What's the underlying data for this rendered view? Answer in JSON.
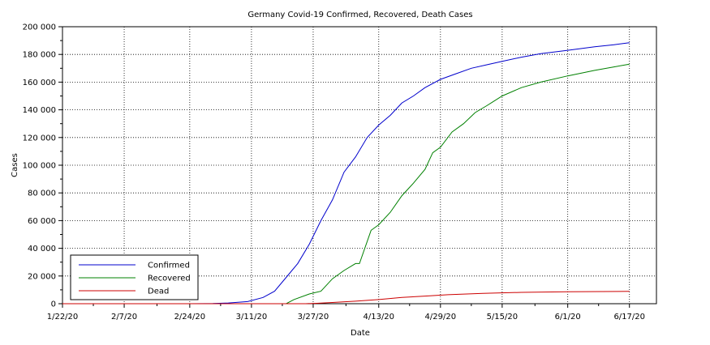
{
  "chart_data": {
    "type": "line",
    "title": "Germany Covid-19 Confirmed, Recovered, Death Cases",
    "xlabel": "Date",
    "ylabel": "Cases",
    "x_ticks": [
      "1/22/20",
      "2/7/20",
      "2/24/20",
      "3/11/20",
      "3/27/20",
      "4/13/20",
      "4/29/20",
      "5/15/20",
      "6/1/20",
      "6/17/20"
    ],
    "y_ticks": [
      "0",
      "20 000",
      "40 000",
      "60 000",
      "80 000",
      "100 000",
      "120 000",
      "140 000",
      "160 000",
      "180 000",
      "200 000"
    ],
    "xlim": [
      "1/22/20",
      "6/24/20"
    ],
    "ylim": [
      0,
      200000
    ],
    "grid": true,
    "legend": "bottom-left",
    "series": [
      {
        "name": "Confirmed",
        "color": "#0000cc",
        "points": [
          [
            "1/22/20",
            0
          ],
          [
            "2/24/20",
            20
          ],
          [
            "3/1/20",
            130
          ],
          [
            "3/5/20",
            500
          ],
          [
            "3/10/20",
            1500
          ],
          [
            "3/14/20",
            4500
          ],
          [
            "3/17/20",
            9000
          ],
          [
            "3/20/20",
            19000
          ],
          [
            "3/23/20",
            29000
          ],
          [
            "3/26/20",
            43000
          ],
          [
            "3/29/20",
            60000
          ],
          [
            "4/1/20",
            75000
          ],
          [
            "4/4/20",
            95000
          ],
          [
            "4/7/20",
            106000
          ],
          [
            "4/10/20",
            120000
          ],
          [
            "4/13/20",
            129000
          ],
          [
            "4/16/20",
            136000
          ],
          [
            "4/19/20",
            145000
          ],
          [
            "4/22/20",
            150000
          ],
          [
            "4/25/20",
            156000
          ],
          [
            "4/29/20",
            162000
          ],
          [
            "5/3/20",
            166000
          ],
          [
            "5/7/20",
            170000
          ],
          [
            "5/11/20",
            172500
          ],
          [
            "5/15/20",
            175000
          ],
          [
            "5/20/20",
            178000
          ],
          [
            "5/25/20",
            180500
          ],
          [
            "6/1/20",
            183000
          ],
          [
            "6/8/20",
            185500
          ],
          [
            "6/13/20",
            187000
          ],
          [
            "6/17/20",
            188500
          ]
        ]
      },
      {
        "name": "Recovered",
        "color": "#008000",
        "points": [
          [
            "1/22/20",
            0
          ],
          [
            "3/20/20",
            0
          ],
          [
            "3/22/20",
            3000
          ],
          [
            "3/26/20",
            7000
          ],
          [
            "3/29/20",
            9000
          ],
          [
            "4/1/20",
            18000
          ],
          [
            "4/4/20",
            24000
          ],
          [
            "4/7/20",
            29000
          ],
          [
            "4/8/20",
            29000
          ],
          [
            "4/11/20",
            53000
          ],
          [
            "4/13/20",
            57000
          ],
          [
            "4/16/20",
            66000
          ],
          [
            "4/19/20",
            78000
          ],
          [
            "4/22/20",
            87000
          ],
          [
            "4/25/20",
            97000
          ],
          [
            "4/27/20",
            109000
          ],
          [
            "4/29/20",
            113000
          ],
          [
            "5/2/20",
            124000
          ],
          [
            "5/5/20",
            130000
          ],
          [
            "5/8/20",
            138000
          ],
          [
            "5/11/20",
            143000
          ],
          [
            "5/15/20",
            150000
          ],
          [
            "5/20/20",
            156000
          ],
          [
            "5/25/20",
            160000
          ],
          [
            "6/1/20",
            164500
          ],
          [
            "6/8/20",
            168500
          ],
          [
            "6/13/20",
            171000
          ],
          [
            "6/17/20",
            173000
          ]
        ]
      },
      {
        "name": "Dead",
        "color": "#cc0000",
        "points": [
          [
            "1/22/20",
            0
          ],
          [
            "3/25/20",
            0
          ],
          [
            "3/28/20",
            300
          ],
          [
            "4/1/20",
            900
          ],
          [
            "4/7/20",
            1800
          ],
          [
            "4/13/20",
            3000
          ],
          [
            "4/19/20",
            4500
          ],
          [
            "4/25/20",
            5500
          ],
          [
            "5/1/20",
            6500
          ],
          [
            "5/10/20",
            7500
          ],
          [
            "5/20/20",
            8200
          ],
          [
            "6/1/20",
            8600
          ],
          [
            "6/17/20",
            8900
          ]
        ]
      }
    ]
  }
}
